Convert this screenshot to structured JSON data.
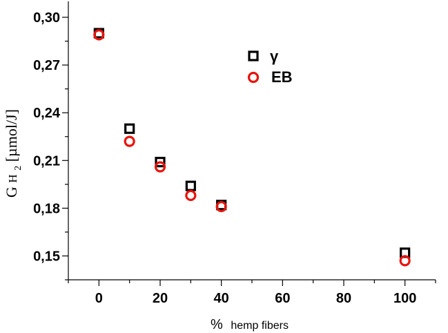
{
  "chart_data": {
    "type": "scatter",
    "xlabel_prefix": "%",
    "xlabel": "hemp fibers",
    "ylabel": {
      "g": "G",
      "h": "H",
      "sub": "2",
      "unit": " [µmol/J]"
    },
    "xlim": [
      -10,
      110
    ],
    "ylim": [
      0.135,
      0.31
    ],
    "xticks": [
      0,
      20,
      40,
      60,
      80,
      100
    ],
    "xtick_labels": [
      "0",
      "20",
      "40",
      "60",
      "80",
      "100"
    ],
    "yticks": [
      0.15,
      0.18,
      0.21,
      0.24,
      0.27,
      0.3
    ],
    "ytick_labels": [
      "0,15",
      "0,18",
      "0,21",
      "0,24",
      "0,27",
      "0,30"
    ],
    "legend_position": "top-center",
    "grid": false,
    "series": [
      {
        "name": "γ",
        "marker": "square",
        "color": "#000000",
        "x": [
          0,
          10,
          20,
          30,
          40,
          100
        ],
        "y": [
          0.29,
          0.23,
          0.209,
          0.194,
          0.182,
          0.152
        ]
      },
      {
        "name": "EB",
        "marker": "circle",
        "color": "#e8140c",
        "x": [
          0,
          10,
          20,
          30,
          40,
          100
        ],
        "y": [
          0.289,
          0.222,
          0.206,
          0.188,
          0.181,
          0.147
        ]
      }
    ]
  }
}
